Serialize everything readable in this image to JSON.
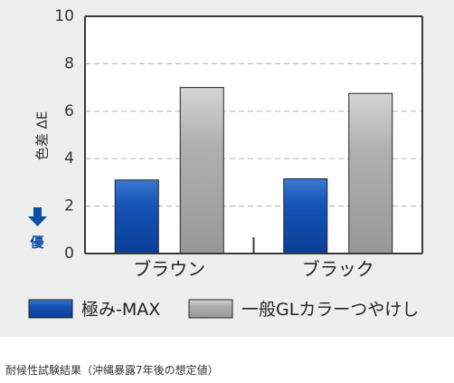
{
  "chart_data": {
    "type": "bar",
    "categories": [
      "ブラウン",
      "ブラック"
    ],
    "series": [
      {
        "name": "極み-MAX",
        "values": [
          3.1,
          3.15
        ]
      },
      {
        "name": "一般GLカラーつやけし",
        "values": [
          7.0,
          6.75
        ]
      }
    ],
    "ylabel": "色差 ΔE",
    "ylim": [
      0,
      10
    ],
    "yticks": [
      "0",
      "2",
      "4",
      "6",
      "8",
      "10"
    ],
    "better_label": "優",
    "better_icon": "arrow-down-icon",
    "grid": "dashed-horizontal",
    "legend_position": "bottom",
    "colors": {
      "series_0": "#0f4aa6",
      "series_1": "#a3a3a3",
      "axis": "#3a3a3a",
      "grid": "#bdbdbd",
      "better": "#0d4ea6"
    }
  },
  "caption": "耐候性試験結果（沖縄暴露7年後の想定値）"
}
